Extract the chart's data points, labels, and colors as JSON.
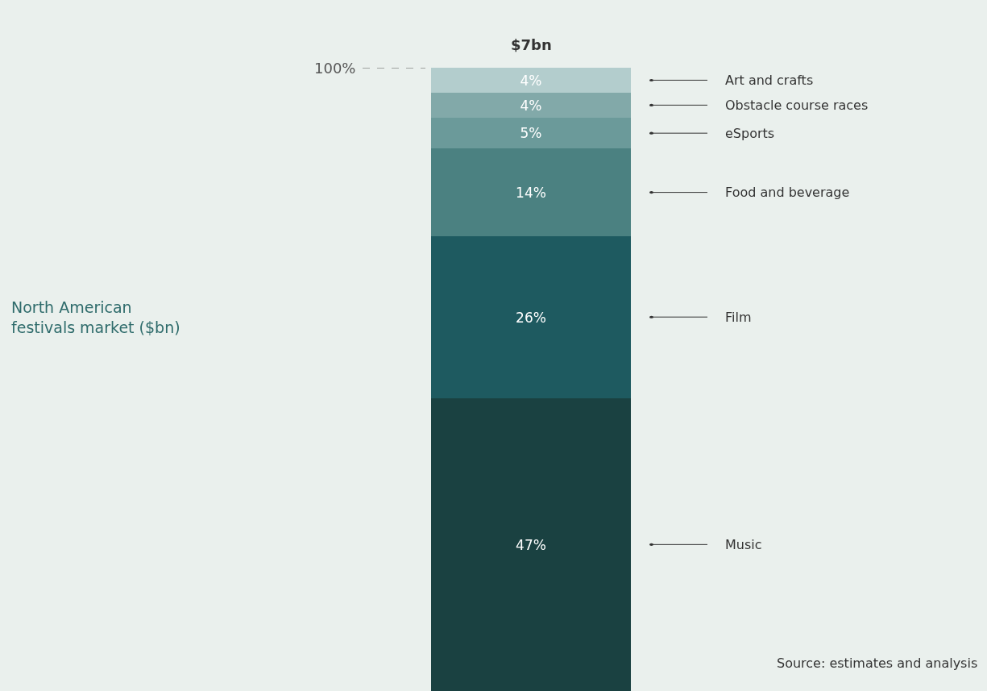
{
  "chart_data": {
    "type": "bar",
    "stacked": true,
    "categories": [
      null
    ],
    "title": "$7bn",
    "ylim": [
      0,
      100
    ],
    "legend": false,
    "series": [
      {
        "name": "Music",
        "color": "#1a4141",
        "values": [
          47
        ],
        "value_labels": [
          "47%"
        ]
      },
      {
        "name": "Film",
        "color": "#1e5a60",
        "values": [
          26
        ],
        "value_labels": [
          "26%"
        ]
      },
      {
        "name": "Food and beverage",
        "color": "#4b8181",
        "values": [
          14
        ],
        "value_labels": [
          "14%"
        ]
      },
      {
        "name": "eSports",
        "color": "#6b9a9a",
        "values": [
          5
        ],
        "value_labels": [
          "5%"
        ]
      },
      {
        "name": "Obstacle course races",
        "color": "#82a9a9",
        "values": [
          4
        ],
        "value_labels": [
          "4%"
        ]
      },
      {
        "name": "Art and crafts",
        "color": "#b3cdcd",
        "values": [
          4
        ],
        "value_labels": [
          "4%"
        ]
      }
    ],
    "ref_lines": [
      {
        "axis": "y",
        "value": 100,
        "label": "100%",
        "line_style": "dashed",
        "color": "#555555"
      }
    ],
    "annotations": [
      "North American festivals market ($bn)",
      "Source: estimates and analysis"
    ]
  }
}
